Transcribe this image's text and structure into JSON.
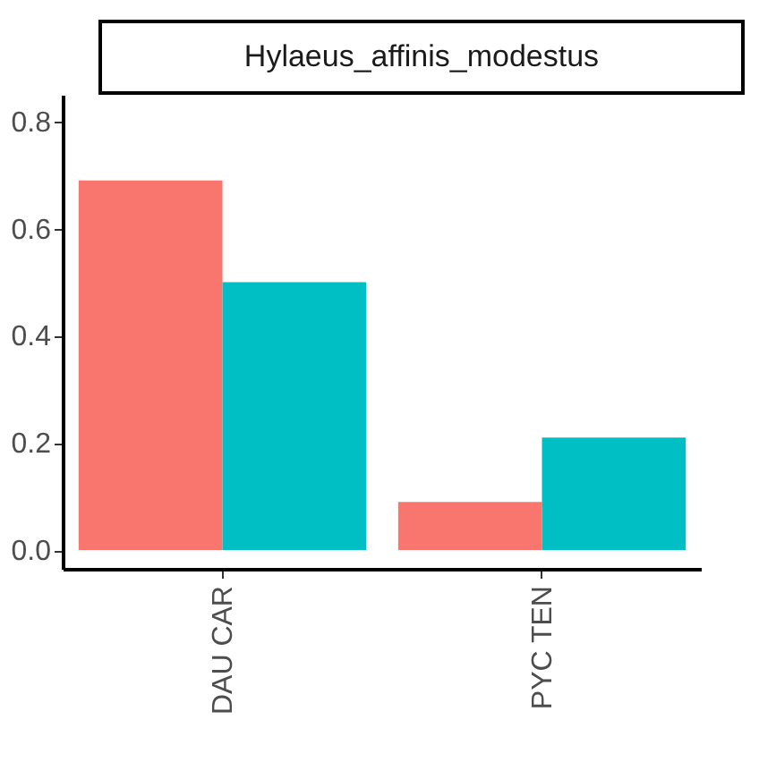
{
  "chart_data": {
    "type": "bar",
    "title": "Hylaeus_affinis_modestus",
    "categories": [
      "DAU CAR",
      "PYC TEN"
    ],
    "series": [
      {
        "color": "#f8766d",
        "values": [
          0.69,
          0.09
        ]
      },
      {
        "color": "#00bfc4",
        "values": [
          0.5,
          0.21
        ]
      }
    ],
    "ylim": [
      -0.035,
      0.85
    ],
    "yticks": [
      {
        "value": 0,
        "label": "0.0"
      },
      0.2,
      0.4,
      0.6,
      0.8
    ],
    "grid": false,
    "legend": false
  }
}
